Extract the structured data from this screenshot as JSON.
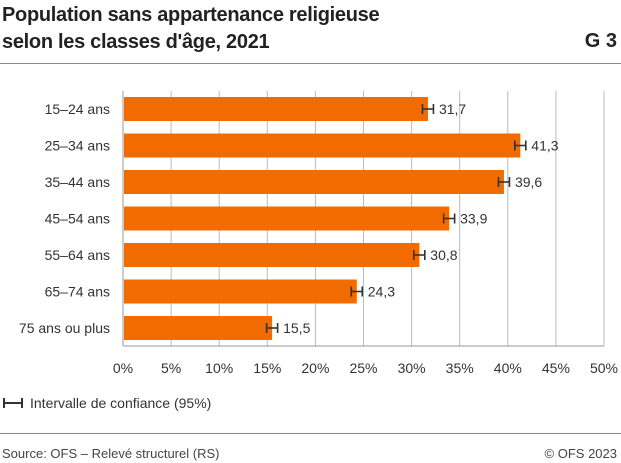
{
  "title_line1": "Population sans appartenance religieuse",
  "title_line2": "selon les classes d'âge, 2021",
  "graph_number": "G 3",
  "legend_label": "Intervalle de confiance (95%)",
  "source": "Source: OFS – Relevé structurel (RS)",
  "copyright": "© OFS 2023",
  "colors": {
    "bar": "#f26b00",
    "grid": "#bbbbbb",
    "error_bar": "#333333"
  },
  "chart_data": {
    "type": "bar",
    "orientation": "horizontal",
    "categories": [
      "15–24 ans",
      "25–34 ans",
      "35–44 ans",
      "45–54 ans",
      "55–64 ans",
      "65–74 ans",
      "75 ans ou plus"
    ],
    "values": [
      31.7,
      41.3,
      39.6,
      33.9,
      30.8,
      24.3,
      15.5
    ],
    "value_labels": [
      "31,7",
      "41,3",
      "39,6",
      "33,9",
      "30,8",
      "24,3",
      "15,5"
    ],
    "xlim": [
      0,
      50
    ],
    "xticks": [
      0,
      5,
      10,
      15,
      20,
      25,
      30,
      35,
      40,
      45,
      50
    ],
    "xtick_labels": [
      "0%",
      "5%",
      "10%",
      "15%",
      "20%",
      "25%",
      "30%",
      "35%",
      "40%",
      "45%",
      "50%"
    ],
    "error_bars": "95% confidence interval",
    "grid": true
  }
}
